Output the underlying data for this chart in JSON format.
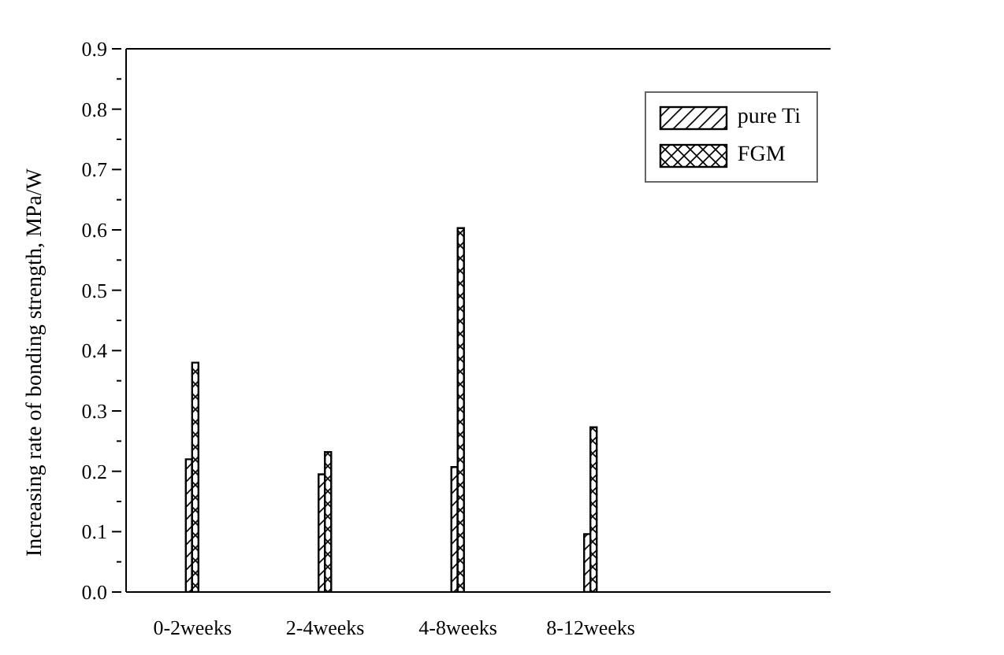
{
  "chart_data": {
    "type": "bar",
    "ylabel": "Increasing rate of bonding strength, MPa/W",
    "categories": [
      "0-2weeks",
      "2-4weeks",
      "4-8weeks",
      "8-12weeks"
    ],
    "series": [
      {
        "name": "pure Ti",
        "color": "#000000",
        "values": [
          0.22,
          0.195,
          0.207,
          0.096
        ]
      },
      {
        "name": "FGM",
        "color": "#000000",
        "values": [
          0.38,
          0.232,
          0.603,
          0.273
        ]
      }
    ],
    "ylim": [
      0,
      0.9
    ],
    "yticks": [
      {
        "value": 0,
        "label": "0.0"
      },
      {
        "value": 0.05,
        "label": null
      },
      {
        "value": 0.1,
        "label": "0.1"
      },
      {
        "value": 0.15,
        "label": null
      },
      {
        "value": 0.2,
        "label": "0.2"
      },
      {
        "value": 0.25,
        "label": null
      },
      {
        "value": 0.3,
        "label": "0.3"
      },
      {
        "value": 0.35,
        "label": null
      },
      {
        "value": 0.4,
        "label": "0.4"
      },
      {
        "value": 0.45,
        "label": null
      },
      {
        "value": 0.5,
        "label": "0.5"
      },
      {
        "value": 0.55,
        "label": null
      },
      {
        "value": 0.6,
        "label": "0.6"
      },
      {
        "value": 0.65,
        "label": null
      },
      {
        "value": 0.7,
        "label": "0.7"
      },
      {
        "value": 0.75,
        "label": null
      },
      {
        "value": 0.8,
        "label": "0.8"
      },
      {
        "value": 0.85,
        "label": null
      },
      {
        "value": 0.9,
        "label": "0.9"
      }
    ],
    "grid": false,
    "legend": "top right"
  }
}
